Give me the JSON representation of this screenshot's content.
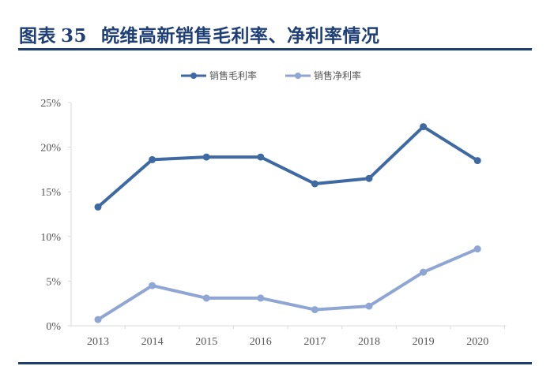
{
  "header": {
    "figure_label": "图表",
    "figure_number": "35",
    "title": "皖维高新销售毛利率、净利率情况"
  },
  "colors": {
    "title": "#1f3f77",
    "rule": "#1e3e6e",
    "gross_margin": "#3e69a3",
    "net_margin": "#8fa6d4",
    "axis": "#d9d9d9",
    "tick_text": "#555555"
  },
  "legend": {
    "items": [
      {
        "label": "销售毛利率",
        "color": "#3e69a3"
      },
      {
        "label": "销售净利率",
        "color": "#8fa6d4"
      }
    ]
  },
  "chart_data": {
    "type": "line",
    "title": "皖维高新销售毛利率、净利率情况",
    "xlabel": "",
    "ylabel": "",
    "categories": [
      "2013",
      "2014",
      "2015",
      "2016",
      "2017",
      "2018",
      "2019",
      "2020"
    ],
    "series": [
      {
        "name": "销售毛利率",
        "values": [
          13.3,
          18.6,
          18.9,
          18.9,
          15.9,
          16.5,
          22.3,
          18.5
        ]
      },
      {
        "name": "销售净利率",
        "values": [
          0.7,
          4.5,
          3.1,
          3.1,
          1.8,
          2.2,
          6.0,
          8.6
        ]
      }
    ],
    "yticks": [
      "0%",
      "5%",
      "10%",
      "15%",
      "20%",
      "25%"
    ],
    "ylim": [
      0,
      25
    ],
    "grid": false,
    "legend_position": "top",
    "markers": true
  }
}
